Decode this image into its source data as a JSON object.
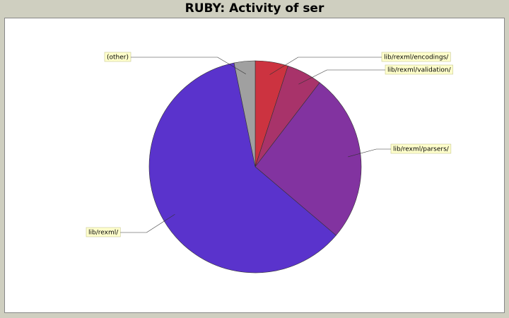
{
  "chart_data": {
    "type": "pie",
    "title": "RUBY: Activity of ser",
    "slices": [
      {
        "label": "lib/rexml/encodings/",
        "value": 5.0,
        "color": "#cc3340"
      },
      {
        "label": "lib/rexml/validation/",
        "value": 5.4,
        "color": "#a8336a"
      },
      {
        "label": "lib/rexml/parsers/",
        "value": 25.8,
        "color": "#8233a0"
      },
      {
        "label": "lib/rexml/",
        "value": 60.6,
        "color": "#5a33cc"
      },
      {
        "label": "(other)",
        "value": 3.2,
        "color": "#a0a0a0"
      }
    ],
    "start_angle_deg": 0,
    "direction": "clockwise",
    "legend": "none",
    "label_style": "callout boxes"
  },
  "colors": {
    "background": "#cfcfc0",
    "plot_background": "#ffffff",
    "label_box": "#ffffcc"
  }
}
